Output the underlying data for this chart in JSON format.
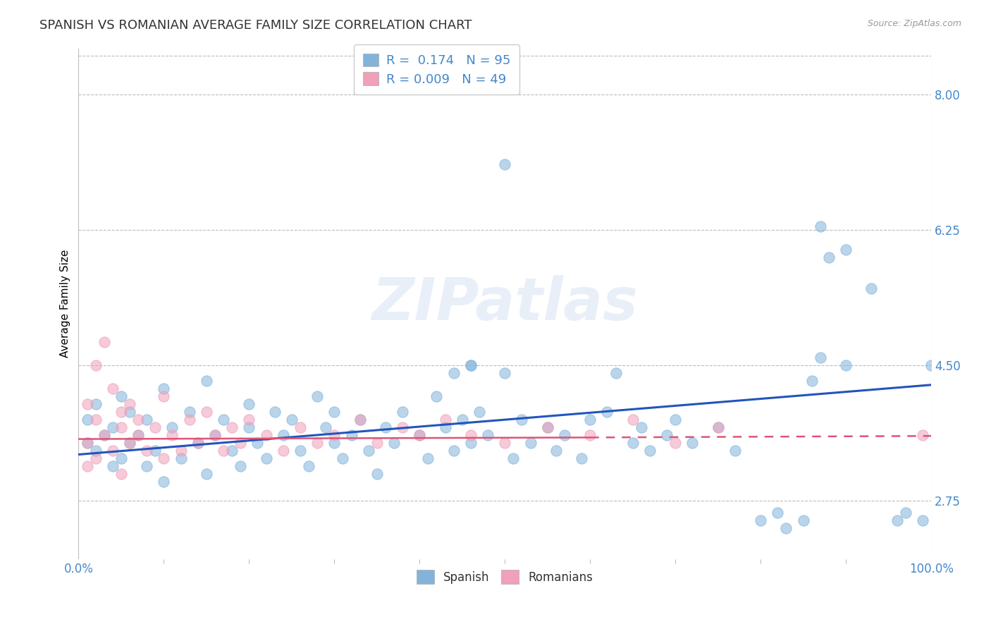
{
  "title": "SPANISH VS ROMANIAN AVERAGE FAMILY SIZE CORRELATION CHART",
  "source_text": "Source: ZipAtlas.com",
  "ylabel": "Average Family Size",
  "xlim": [
    0,
    100
  ],
  "ylim": [
    2.0,
    8.6
  ],
  "yticks": [
    2.75,
    4.5,
    6.25,
    8.0
  ],
  "ytick_labels": [
    "2.75",
    "4.50",
    "6.25",
    "8.00"
  ],
  "xtick_labels": [
    "0.0%",
    "100.0%"
  ],
  "xticks": [
    0,
    100
  ],
  "watermark_text": "ZIPatlas",
  "legend1_label": "R =  0.174   N = 95",
  "legend2_label": "R = 0.009   N = 49",
  "bottom_legend1": "Spanish",
  "bottom_legend2": "Romanians",
  "spanish_color": "#82b4db",
  "romanian_color": "#f0a0b8",
  "spanish_line_color": "#2255bb",
  "romanian_line_color": "#dd5577",
  "grid_color": "#bbbbbb",
  "tick_color": "#4488cc",
  "bg_color": "#ffffff",
  "title_color": "#333333",
  "title_fontsize": 13,
  "axis_label_fontsize": 11,
  "tick_fontsize": 12,
  "legend_fontsize": 13,
  "marker_size": 120,
  "marker_alpha": 0.55,
  "spanish_x": [
    1,
    1,
    2,
    2,
    3,
    4,
    4,
    5,
    5,
    6,
    6,
    7,
    8,
    8,
    9,
    10,
    10,
    11,
    12,
    13,
    14,
    15,
    15,
    16,
    17,
    18,
    19,
    20,
    20,
    21,
    22,
    23,
    24,
    25,
    26,
    27,
    28,
    29,
    30,
    30,
    31,
    32,
    33,
    34,
    35,
    36,
    37,
    38,
    40,
    41,
    42,
    43,
    44,
    45,
    46,
    47,
    48,
    50,
    51,
    52,
    53,
    55,
    56,
    57,
    59,
    60,
    62,
    63,
    65,
    66,
    67,
    69,
    70,
    72,
    75,
    77,
    80,
    82,
    83,
    85,
    87,
    88,
    90,
    93,
    96,
    97,
    99,
    100,
    50,
    46,
    44,
    46,
    90,
    86,
    87
  ],
  "spanish_y": [
    3.5,
    3.8,
    3.4,
    4.0,
    3.6,
    3.2,
    3.7,
    3.3,
    4.1,
    3.5,
    3.9,
    3.6,
    3.2,
    3.8,
    3.4,
    3.0,
    4.2,
    3.7,
    3.3,
    3.9,
    3.5,
    3.1,
    4.3,
    3.6,
    3.8,
    3.4,
    3.2,
    3.7,
    4.0,
    3.5,
    3.3,
    3.9,
    3.6,
    3.8,
    3.4,
    3.2,
    4.1,
    3.7,
    3.5,
    3.9,
    3.3,
    3.6,
    3.8,
    3.4,
    3.1,
    3.7,
    3.5,
    3.9,
    3.6,
    3.3,
    4.1,
    3.7,
    3.4,
    3.8,
    3.5,
    3.9,
    3.6,
    4.4,
    3.3,
    3.8,
    3.5,
    3.7,
    3.4,
    3.6,
    3.3,
    3.8,
    3.9,
    4.4,
    3.5,
    3.7,
    3.4,
    3.6,
    3.8,
    3.5,
    3.7,
    3.4,
    2.5,
    2.6,
    2.4,
    2.5,
    6.3,
    5.9,
    6.0,
    5.5,
    2.5,
    2.6,
    2.5,
    4.5,
    7.1,
    4.5,
    4.4,
    4.5,
    4.5,
    4.3,
    4.6
  ],
  "romanian_x": [
    1,
    1,
    1,
    2,
    2,
    2,
    3,
    3,
    4,
    4,
    5,
    5,
    5,
    6,
    6,
    7,
    7,
    8,
    9,
    10,
    10,
    11,
    12,
    13,
    14,
    15,
    16,
    17,
    18,
    19,
    20,
    22,
    24,
    26,
    28,
    30,
    33,
    35,
    38,
    40,
    43,
    46,
    50,
    55,
    60,
    65,
    70,
    75,
    99
  ],
  "romanian_y": [
    3.5,
    4.0,
    3.2,
    3.8,
    4.5,
    3.3,
    3.6,
    4.8,
    3.4,
    4.2,
    3.7,
    3.9,
    3.1,
    3.5,
    4.0,
    3.6,
    3.8,
    3.4,
    3.7,
    3.3,
    4.1,
    3.6,
    3.4,
    3.8,
    3.5,
    3.9,
    3.6,
    3.4,
    3.7,
    3.5,
    3.8,
    3.6,
    3.4,
    3.7,
    3.5,
    3.6,
    3.8,
    3.5,
    3.7,
    3.6,
    3.8,
    3.6,
    3.5,
    3.7,
    3.6,
    3.8,
    3.5,
    3.7,
    3.6
  ],
  "romanian_solid_end": 60,
  "spanish_line_start_y": 3.35,
  "spanish_line_end_y": 4.25,
  "romanian_line_y": 3.55
}
